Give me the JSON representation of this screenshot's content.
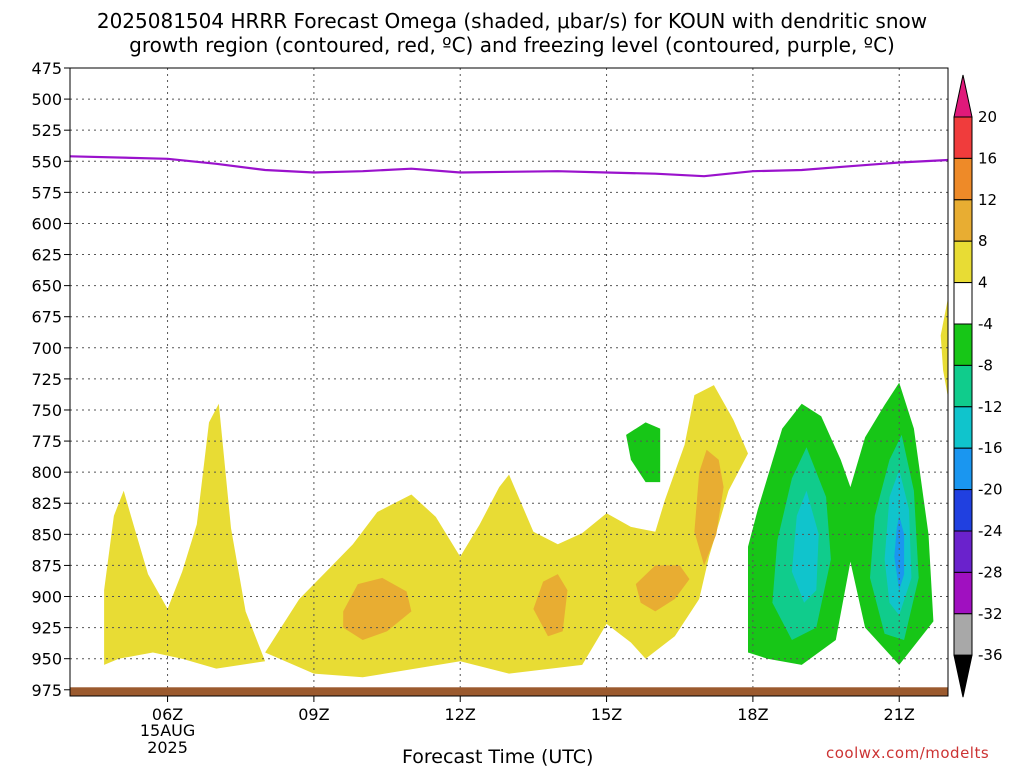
{
  "chart_data": {
    "type": "heatmap",
    "title_line1": "2025081504 HRRR Forecast Omega (shaded, μbar/s) for KOUN with dendritic snow",
    "title_line2": "growth region (contoured, red, ºC) and freezing level (contoured, purple, ºC)",
    "xlabel": "Forecast Time (UTC)",
    "x_ticks": [
      {
        "hour": 6,
        "label": "06Z",
        "date": "15AUG",
        "year": "2025"
      },
      {
        "hour": 9,
        "label": "09Z"
      },
      {
        "hour": 12,
        "label": "12Z"
      },
      {
        "hour": 15,
        "label": "15Z"
      },
      {
        "hour": 18,
        "label": "18Z"
      },
      {
        "hour": 21,
        "label": "21Z"
      }
    ],
    "xlim": [
      4,
      22
    ],
    "y_axis": "pressure (hPa)",
    "y_ticks": [
      475,
      500,
      525,
      550,
      575,
      600,
      625,
      650,
      675,
      700,
      725,
      750,
      775,
      800,
      825,
      850,
      875,
      900,
      925,
      950,
      975
    ],
    "ylim": [
      475,
      980
    ],
    "grid": true,
    "colorbar": {
      "position": "right",
      "levels": [
        -36,
        -32,
        -28,
        -24,
        -20,
        -16,
        -12,
        -8,
        -4,
        4,
        8,
        12,
        16,
        20
      ],
      "labels": [
        "20",
        "16",
        "12",
        "8",
        "4",
        "-4",
        "-8",
        "-12",
        "-16",
        "-20",
        "-24",
        "-28",
        "-32",
        "-36"
      ],
      "colors": {
        "above_20": "#e0197a",
        "16_20": "#f03c3c",
        "12_16": "#ee8a28",
        "8_12": "#e8ad32",
        "4_8": "#e8dc34",
        "-4_4": "#ffffff",
        "-8_-4": "#17c617",
        "-12_-8": "#10cc8c",
        "-16_-12": "#10c4cc",
        "-20_-16": "#1a96f0",
        "-24_-20": "#2040e0",
        "-28_-24": "#6a22cc",
        "-32_-28": "#a010c0",
        "-36_-32": "#a8a8a8",
        "below_-36": "#000000"
      }
    },
    "freezing_level": {
      "color": "#9a12cc",
      "points": [
        [
          4,
          546
        ],
        [
          6,
          548
        ],
        [
          7,
          552
        ],
        [
          8,
          557
        ],
        [
          9,
          559
        ],
        [
          10,
          558
        ],
        [
          11,
          556
        ],
        [
          12,
          559
        ],
        [
          13,
          558.5
        ],
        [
          14,
          558
        ],
        [
          15,
          559
        ],
        [
          16,
          560
        ],
        [
          17,
          562
        ],
        [
          18,
          558
        ],
        [
          19,
          557
        ],
        [
          20,
          554
        ],
        [
          21,
          551
        ],
        [
          22,
          549
        ]
      ]
    },
    "omega_regions": [
      {
        "level": "4_8",
        "color": "#e8dc34",
        "points": [
          [
            4.7,
            955
          ],
          [
            4.7,
            895
          ],
          [
            4.9,
            835
          ],
          [
            5.1,
            815
          ],
          [
            5.3,
            842
          ],
          [
            5.6,
            882
          ],
          [
            6.0,
            910
          ],
          [
            6.3,
            880
          ],
          [
            6.6,
            842
          ],
          [
            6.85,
            760
          ],
          [
            7.05,
            745
          ],
          [
            7.3,
            845
          ],
          [
            7.6,
            912
          ],
          [
            8.0,
            952
          ],
          [
            7.0,
            958
          ],
          [
            6.3,
            950
          ],
          [
            5.7,
            945
          ],
          [
            5.0,
            950
          ]
        ]
      },
      {
        "level": "4_8",
        "color": "#e8dc34",
        "points": [
          [
            8.0,
            945
          ],
          [
            8.7,
            902
          ],
          [
            9.3,
            878
          ],
          [
            9.8,
            858
          ],
          [
            10.3,
            832
          ],
          [
            11.0,
            818
          ],
          [
            11.5,
            836
          ],
          [
            12.0,
            868
          ],
          [
            12.4,
            842
          ],
          [
            12.8,
            812
          ],
          [
            13.0,
            802
          ],
          [
            13.5,
            848
          ],
          [
            14.0,
            858
          ],
          [
            14.5,
            849
          ],
          [
            15.0,
            833
          ],
          [
            15.5,
            844
          ],
          [
            16.0,
            848
          ],
          [
            16.2,
            822
          ],
          [
            16.6,
            778
          ],
          [
            16.8,
            738
          ],
          [
            17.2,
            730
          ],
          [
            17.6,
            758
          ],
          [
            17.9,
            785
          ],
          [
            17.5,
            815
          ],
          [
            17.1,
            868
          ],
          [
            16.9,
            902
          ],
          [
            16.4,
            932
          ],
          [
            15.8,
            950
          ],
          [
            15.5,
            937
          ],
          [
            15.0,
            922
          ],
          [
            14.5,
            955
          ],
          [
            13.0,
            962
          ],
          [
            12.0,
            952
          ],
          [
            10.0,
            965
          ],
          [
            9.0,
            962
          ]
        ]
      },
      {
        "level": "8_12",
        "color": "#e8ad32",
        "points": [
          [
            9.6,
            912
          ],
          [
            9.9,
            890
          ],
          [
            10.4,
            885
          ],
          [
            10.9,
            896
          ],
          [
            11.0,
            912
          ],
          [
            10.5,
            928
          ],
          [
            10.0,
            935
          ],
          [
            9.6,
            925
          ]
        ]
      },
      {
        "level": "8_12",
        "color": "#e8ad32",
        "points": [
          [
            13.5,
            910
          ],
          [
            13.7,
            888
          ],
          [
            14.0,
            882
          ],
          [
            14.2,
            895
          ],
          [
            14.1,
            928
          ],
          [
            13.8,
            932
          ]
        ]
      },
      {
        "level": "8_12",
        "color": "#e8ad32",
        "points": [
          [
            15.6,
            890
          ],
          [
            16.0,
            875
          ],
          [
            16.5,
            875
          ],
          [
            16.7,
            886
          ],
          [
            16.4,
            902
          ],
          [
            16.0,
            912
          ],
          [
            15.7,
            905
          ]
        ]
      },
      {
        "level": "8_12",
        "color": "#e8ad32",
        "points": [
          [
            16.8,
            848
          ],
          [
            16.9,
            800
          ],
          [
            17.05,
            782
          ],
          [
            17.3,
            790
          ],
          [
            17.4,
            812
          ],
          [
            17.25,
            850
          ],
          [
            17.0,
            875
          ]
        ]
      },
      {
        "level": "-8_-4",
        "color": "#17c617",
        "points": [
          [
            15.4,
            770
          ],
          [
            15.8,
            760
          ],
          [
            16.1,
            765
          ],
          [
            16.1,
            808
          ],
          [
            15.8,
            808
          ],
          [
            15.5,
            790
          ]
        ]
      },
      {
        "level": "-8_-4",
        "color": "#17c617",
        "points": [
          [
            17.9,
            945
          ],
          [
            17.9,
            860
          ],
          [
            18.1,
            830
          ],
          [
            18.6,
            765
          ],
          [
            19.0,
            745
          ],
          [
            19.4,
            755
          ],
          [
            19.8,
            790
          ],
          [
            20.0,
            812
          ],
          [
            20.3,
            772
          ],
          [
            20.7,
            746
          ],
          [
            21.0,
            728
          ],
          [
            21.3,
            765
          ],
          [
            21.6,
            850
          ],
          [
            21.7,
            920
          ],
          [
            21.0,
            955
          ],
          [
            20.3,
            925
          ],
          [
            20.0,
            872
          ],
          [
            19.7,
            935
          ],
          [
            19.0,
            955
          ],
          [
            18.3,
            950
          ]
        ]
      },
      {
        "level": "-12_-8",
        "color": "#10cc8c",
        "points": [
          [
            18.4,
            905
          ],
          [
            18.5,
            855
          ],
          [
            18.8,
            805
          ],
          [
            19.1,
            780
          ],
          [
            19.5,
            820
          ],
          [
            19.6,
            870
          ],
          [
            19.3,
            925
          ],
          [
            18.8,
            935
          ]
        ]
      },
      {
        "level": "-12_-8",
        "color": "#10cc8c",
        "points": [
          [
            20.4,
            885
          ],
          [
            20.5,
            835
          ],
          [
            20.8,
            790
          ],
          [
            21.05,
            770
          ],
          [
            21.3,
            815
          ],
          [
            21.4,
            885
          ],
          [
            21.1,
            935
          ],
          [
            20.7,
            930
          ]
        ]
      },
      {
        "level": "-16_-12",
        "color": "#10c4cc",
        "points": [
          [
            18.8,
            880
          ],
          [
            18.9,
            835
          ],
          [
            19.1,
            815
          ],
          [
            19.35,
            850
          ],
          [
            19.3,
            895
          ],
          [
            19.05,
            905
          ]
        ]
      },
      {
        "level": "-16_-12",
        "color": "#10c4cc",
        "points": [
          [
            20.7,
            870
          ],
          [
            20.8,
            820
          ],
          [
            21.0,
            798
          ],
          [
            21.2,
            830
          ],
          [
            21.25,
            885
          ],
          [
            21.0,
            915
          ],
          [
            20.8,
            905
          ]
        ]
      },
      {
        "level": "-20_-16",
        "color": "#1a96f0",
        "points": [
          [
            20.9,
            868
          ],
          [
            20.95,
            845
          ],
          [
            21.0,
            835
          ],
          [
            21.1,
            850
          ],
          [
            21.1,
            882
          ],
          [
            21.0,
            895
          ]
        ]
      },
      {
        "level": "4_8",
        "color": "#e8dc34",
        "points": [
          [
            22.0,
            660
          ],
          [
            21.85,
            690
          ],
          [
            21.9,
            718
          ],
          [
            22.0,
            740
          ]
        ]
      }
    ],
    "surface_band": {
      "color": "#9b5a2e",
      "from": 973,
      "to": 980
    }
  },
  "watermark": "coolwx.com/modelts"
}
